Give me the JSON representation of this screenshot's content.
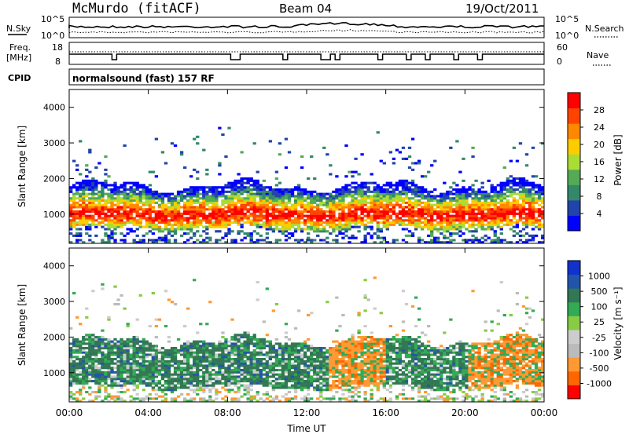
{
  "header": {
    "station": "McMurdo (fitACF)",
    "beam": "Beam 04",
    "date": "19/Oct/2011"
  },
  "noise_panel": {
    "left_label": "N.Sky",
    "right_label": "N.Search",
    "tick_top": "10^5",
    "tick_bottom": "10^0"
  },
  "freq_panel": {
    "left_label_1": "Freq.",
    "left_label_2": "[MHz]",
    "right_label": "Nave",
    "left_ticks": [
      "18",
      "8"
    ],
    "right_ticks": [
      "60",
      "0"
    ]
  },
  "cpid": {
    "label": "CPID",
    "program": "normalsound (fast) 157 RF"
  },
  "colors": {
    "power_scale": [
      "#0000ff",
      "#2244aa",
      "#33886a",
      "#55aa55",
      "#aadd33",
      "#ffcc00",
      "#ff8800",
      "#ff4400",
      "#ff0000"
    ],
    "velocity_scale": [
      "#ff0000",
      "#ff6600",
      "#ff9933",
      "#bbbbbb",
      "#cccccc",
      "#88cc44",
      "#33aa55",
      "#337755",
      "#2255aa",
      "#1133cc"
    ]
  },
  "chart_data": [
    {
      "type": "heatmap",
      "name": "power",
      "ylabel": "Slant Range [km]",
      "ylim": [
        180,
        4500
      ],
      "yticks": [
        "1000",
        "2000",
        "3000",
        "4000"
      ],
      "xlim": [
        "00:00",
        "24:00"
      ],
      "colorbar": {
        "label": "Power [dB]",
        "ticks": [
          "28",
          "24",
          "20",
          "16",
          "12",
          "8",
          "4"
        ]
      },
      "echo_bands": [
        {
          "start_hr": 0,
          "end_hr": 24,
          "range_min_km": 600,
          "range_max_km": 1800,
          "peak_range_km": 1000,
          "peak_db": 28
        }
      ]
    },
    {
      "type": "heatmap",
      "name": "velocity",
      "ylabel": "Slant Range [km]",
      "ylim": [
        180,
        4500
      ],
      "yticks": [
        "1000",
        "2000",
        "3000",
        "4000"
      ],
      "xlim": [
        "00:00",
        "24:00"
      ],
      "xticks": [
        "00:00",
        "04:00",
        "08:00",
        "12:00",
        "16:00",
        "20:00",
        "00:00"
      ],
      "xlabel": "Time UT",
      "colorbar": {
        "label": "Velocity [m s⁻¹]",
        "ticks": [
          "1000",
          "500",
          "100",
          "25",
          "-25",
          "-100",
          "-500",
          "-1000"
        ]
      },
      "echo_bands": [
        {
          "start_hr": 0,
          "end_hr": 24,
          "range_min_km": 600,
          "range_max_km": 1900,
          "dominant_velocity_ms": 300
        }
      ]
    }
  ]
}
